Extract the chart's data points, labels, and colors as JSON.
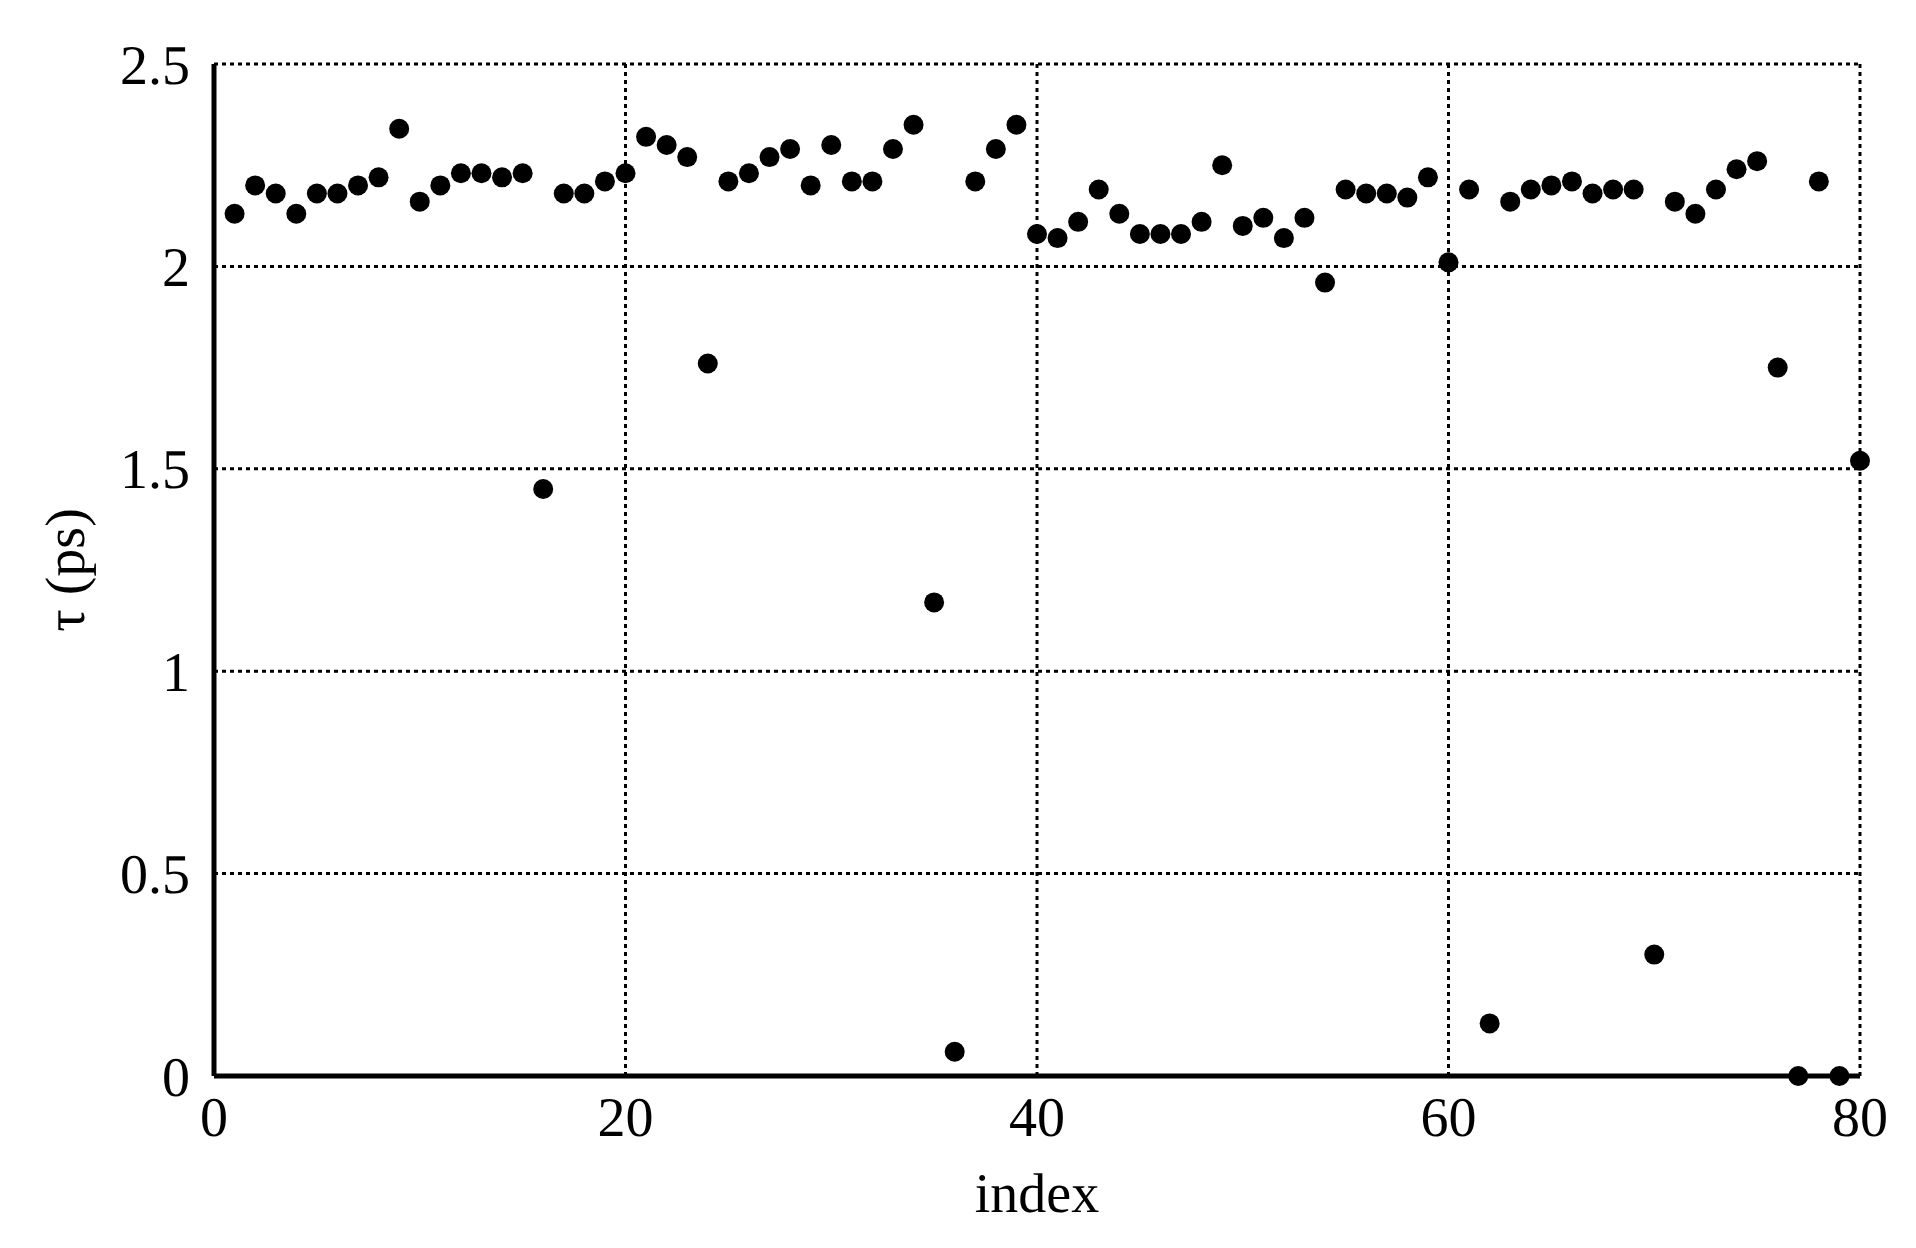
{
  "chart_data": {
    "type": "scatter",
    "xlabel": "index",
    "ylabel": "τ (ps)",
    "x": [
      1,
      2,
      3,
      4,
      5,
      6,
      7,
      8,
      9,
      10,
      11,
      12,
      13,
      14,
      15,
      16,
      17,
      18,
      19,
      20,
      21,
      22,
      23,
      24,
      25,
      26,
      27,
      28,
      29,
      30,
      31,
      32,
      33,
      34,
      35,
      36,
      37,
      38,
      39,
      40,
      41,
      42,
      43,
      44,
      45,
      46,
      47,
      48,
      49,
      50,
      51,
      52,
      53,
      54,
      55,
      56,
      57,
      58,
      59,
      60,
      61,
      62,
      63,
      64,
      65,
      66,
      67,
      68,
      69,
      70,
      71,
      72,
      73,
      74,
      75,
      76,
      77,
      78,
      79,
      80
    ],
    "series": [
      {
        "color": "#000000",
        "values": [
          2.13,
          2.2,
          2.18,
          2.13,
          2.18,
          2.18,
          2.2,
          2.22,
          2.34,
          2.16,
          2.2,
          2.23,
          2.23,
          2.22,
          2.23,
          1.45,
          2.18,
          2.18,
          2.21,
          2.23,
          2.32,
          2.3,
          2.27,
          1.76,
          2.21,
          2.23,
          2.27,
          2.29,
          2.2,
          2.3,
          2.21,
          2.21,
          2.29,
          2.35,
          1.17,
          0.06,
          2.21,
          2.29,
          2.35,
          2.08,
          2.07,
          2.11,
          2.19,
          2.13,
          2.08,
          2.08,
          2.08,
          2.11,
          2.25,
          2.1,
          2.12,
          2.07,
          2.12,
          1.96,
          2.19,
          2.18,
          2.18,
          2.17,
          2.22,
          2.01,
          2.19,
          0.13,
          2.16,
          2.19,
          2.2,
          2.21,
          2.18,
          2.19,
          2.19,
          0.3,
          2.16,
          2.13,
          2.19,
          2.24,
          2.26,
          1.75,
          0,
          2.21,
          0,
          1.52
        ]
      }
    ],
    "xlim": [
      0,
      80
    ],
    "ylim": [
      0,
      2.5
    ],
    "xticks": [
      0,
      20,
      40,
      60,
      80
    ],
    "yticks": [
      0,
      0.5,
      1,
      1.5,
      2,
      2.5
    ],
    "grid": true,
    "marker": "circle"
  }
}
